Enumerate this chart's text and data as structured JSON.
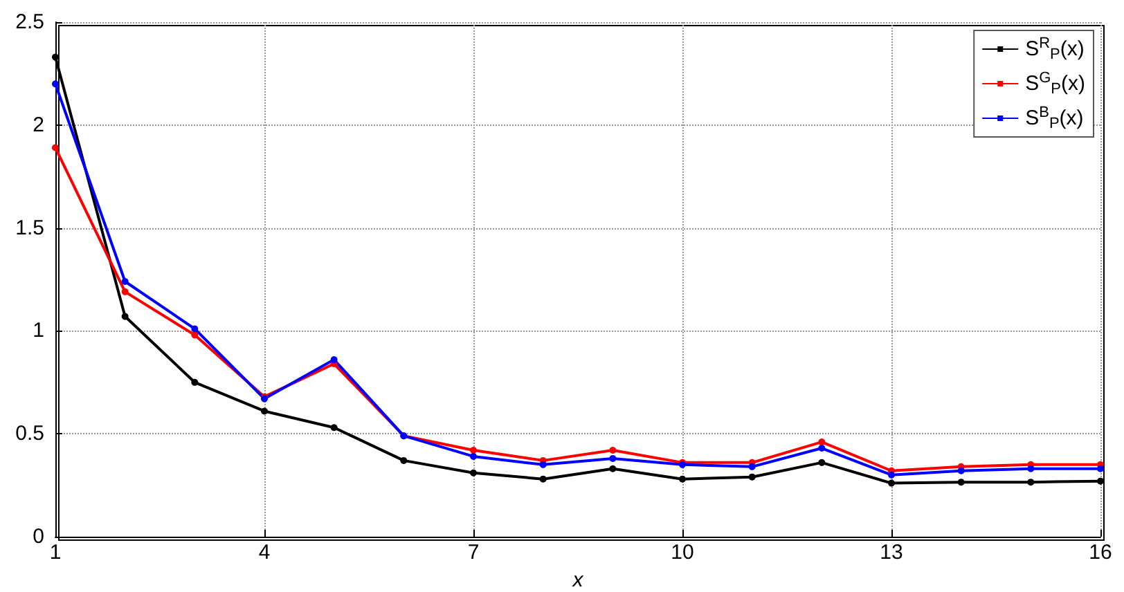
{
  "chart_data": {
    "type": "line",
    "xlabel": "x",
    "x": [
      1,
      2,
      3,
      4,
      5,
      6,
      7,
      8,
      9,
      10,
      11,
      12,
      13,
      14,
      15,
      16
    ],
    "xlim": [
      1,
      16
    ],
    "xticks": [
      1,
      4,
      7,
      10,
      13,
      16
    ],
    "ylim": [
      0,
      2.5
    ],
    "yticks": [
      0,
      0.5,
      1,
      1.5,
      2,
      2.5
    ],
    "grid": true,
    "legend": "top right",
    "marker": "circle",
    "line_style": "solid",
    "series": [
      {
        "name": "S$^{R}$$_{P}$(x)",
        "color": "#000000",
        "values": [
          2.33,
          1.07,
          0.75,
          0.61,
          0.53,
          0.37,
          0.31,
          0.28,
          0.33,
          0.28,
          0.29,
          0.36,
          0.26,
          0.265,
          0.265,
          0.27
        ]
      },
      {
        "name": "S$^{G}$$_{P}$(x)",
        "color": "#ff0000",
        "values": [
          1.89,
          1.19,
          0.98,
          0.68,
          0.84,
          0.49,
          0.42,
          0.37,
          0.42,
          0.36,
          0.36,
          0.46,
          0.32,
          0.34,
          0.35,
          0.35
        ]
      },
      {
        "name": "S$^{B}$$_{P}$(x)",
        "color": "#0000ff",
        "values": [
          2.2,
          1.24,
          1.01,
          0.67,
          0.86,
          0.49,
          0.39,
          0.35,
          0.38,
          0.35,
          0.34,
          0.43,
          0.3,
          0.32,
          0.33,
          0.33
        ]
      }
    ]
  }
}
